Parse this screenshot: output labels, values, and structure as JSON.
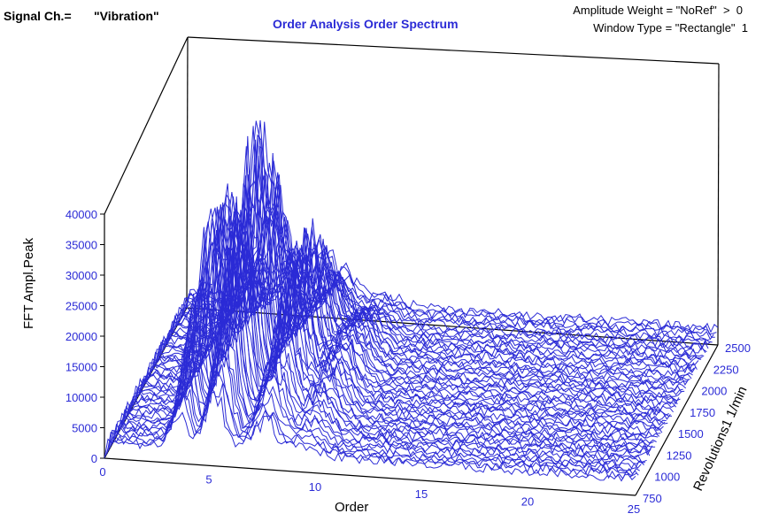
{
  "header": {
    "signal_label": "Signal Ch.=",
    "signal_value": "\"Vibration\"",
    "amplitude_weight": "Amplitude Weight = \"NoRef\"  >  0",
    "window_type": "Window Type = \"Rectangle\"  1"
  },
  "chart_data": {
    "type": "line",
    "title": "Order Analysis Order Spectrum",
    "xlabel": "Order",
    "ylabel": "FFT Ampl.Peak",
    "zlabel": "Revolutions1    1/min",
    "xlim": [
      0,
      25
    ],
    "ylim": [
      0,
      40000
    ],
    "zlim": [
      750,
      2500
    ],
    "x_ticks": [
      "0",
      "5",
      "10",
      "15",
      "20",
      "25"
    ],
    "y_ticks": [
      "0",
      "5000",
      "10000",
      "15000",
      "20000",
      "25000",
      "30000",
      "35000",
      "40000"
    ],
    "z_ticks": [
      "750",
      "1000",
      "1250",
      "1500",
      "1750",
      "2000",
      "2250",
      "2500"
    ],
    "series_color": "#2b2bd6",
    "waterfall": {
      "rpm_start": 750,
      "rpm_end": 2500,
      "slice_count": 60,
      "order_peaks": [
        {
          "order": 3.5,
          "peak": 32000
        },
        {
          "order": 5.2,
          "peak": 43000
        },
        {
          "order": 7.5,
          "peak": 26000
        },
        {
          "order": 9.4,
          "peak": 9000
        }
      ]
    }
  }
}
